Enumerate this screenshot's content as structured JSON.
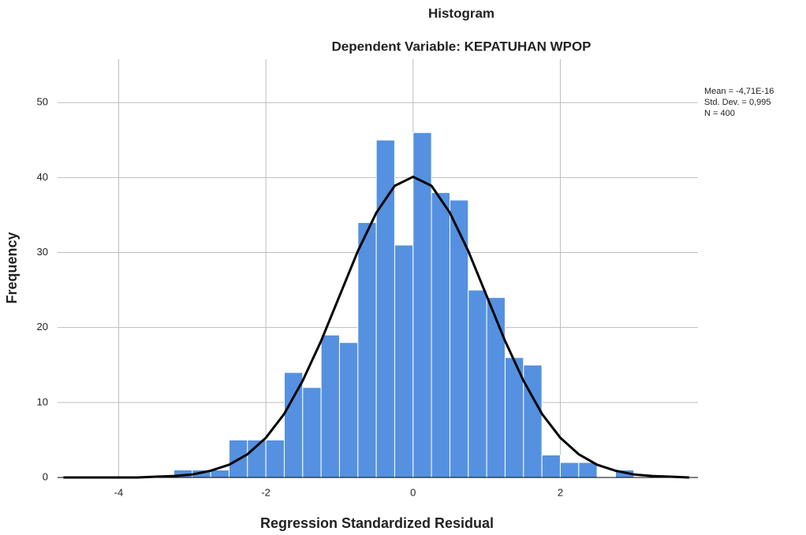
{
  "chart_data": {
    "type": "histogram",
    "title": "Histogram",
    "subtitle": "Dependent Variable: KEPATUHAN WPOP",
    "xlabel": "Regression Standardized Residual",
    "ylabel": "Frequency",
    "stats": [
      "Mean = -4,71E-16",
      "Std. Dev. = 0,995",
      "N = 400"
    ],
    "bins": [
      -3.25,
      -3,
      -2.75,
      -2.5,
      -2.25,
      -2,
      -1.75,
      -1.5,
      -1.25,
      -1,
      -0.75,
      -0.5,
      -0.25,
      0,
      0.25,
      0.5,
      0.75,
      1,
      1.25,
      1.5,
      1.75,
      2,
      2.25,
      2.5,
      2.75,
      3
    ],
    "values": [
      1,
      1,
      1,
      5,
      5,
      5,
      14,
      12,
      19,
      18,
      34,
      45,
      31,
      46,
      38,
      37,
      25,
      24,
      16,
      15,
      3,
      2,
      2,
      0,
      1
    ],
    "color": "#5591e0",
    "curve": {
      "color": "#000000",
      "x": [
        -4.75,
        -4.5,
        -4.25,
        -4,
        -3.75,
        -3.5,
        -3.25,
        -3,
        -2.75,
        -2.5,
        -2.25,
        -2,
        -1.75,
        -1.5,
        -1.25,
        -1,
        -0.75,
        -0.5,
        -0.25,
        0,
        0.25,
        0.5,
        0.75,
        1,
        1.25,
        1.5,
        1.75,
        2,
        2.25,
        2.5,
        2.75,
        3,
        3.25,
        3.5,
        3.75
      ],
      "y": [
        0,
        0,
        0,
        0,
        0,
        0.1,
        0.2,
        0.4,
        0.9,
        1.7,
        3.1,
        5.3,
        8.5,
        12.9,
        18.2,
        24.2,
        30.2,
        35.3,
        38.9,
        40.1,
        38.9,
        35.3,
        30.2,
        24.2,
        18.2,
        12.9,
        8.5,
        5.3,
        3.1,
        1.7,
        0.9,
        0.4,
        0.2,
        0.1,
        0
      ]
    },
    "xlim": [
      -4.83,
      3.87
    ],
    "xticks": [
      -4,
      -2,
      0,
      2
    ],
    "ylim": [
      0,
      55.8
    ],
    "yticks": [
      0,
      10,
      20,
      30,
      40,
      50
    ],
    "grid": true
  }
}
